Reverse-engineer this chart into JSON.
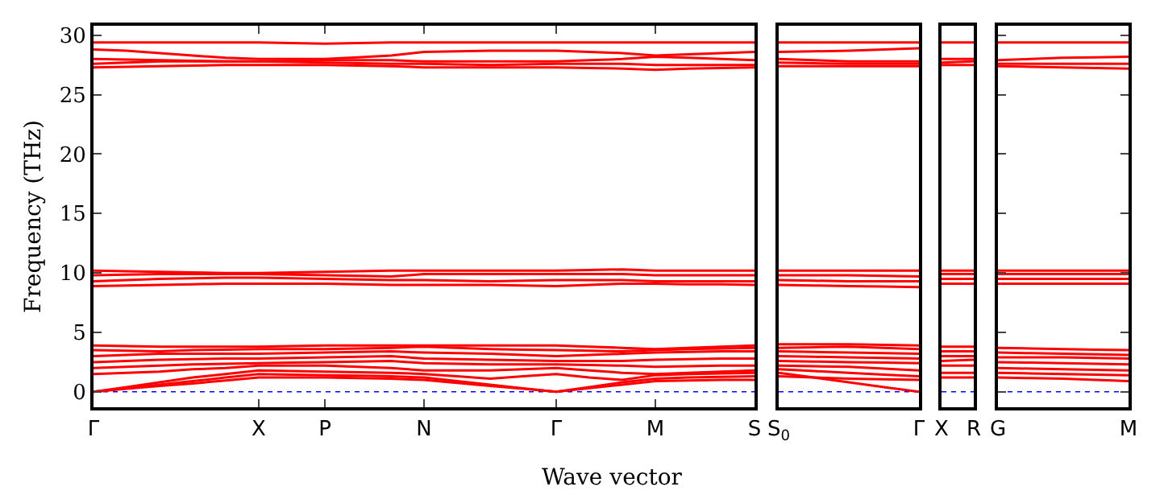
{
  "chart_data": [
    {
      "type": "line",
      "xlabel": "Wave vector",
      "ylabel": "Frequency (THz)",
      "categories": [
        "Γ",
        null,
        null,
        null,
        null,
        "X",
        null,
        "P",
        null,
        null,
        "N",
        null,
        null,
        null,
        "Γ",
        null,
        null,
        "M",
        null,
        null,
        "S"
      ],
      "ylim": [
        -1.3,
        30.8
      ],
      "yticks": [
        0,
        5,
        10,
        15,
        20,
        25,
        30
      ],
      "marker": "none",
      "line_style": "solid",
      "ref_lines": [
        {
          "axis": "y",
          "value": 0,
          "label": null,
          "color": "#0000ff",
          "line_style": "dotted"
        }
      ],
      "series": [
        {
          "color": "#ff0000",
          "values": [
            0,
            0.25,
            0.5,
            0.7,
            0.95,
            1.2,
            1.2,
            1.2,
            1.15,
            1.1,
            1.0,
            0.75,
            0.5,
            0.25,
            0,
            0.3,
            0.6,
            0.9,
            0.95,
            1.0,
            1.0
          ]
        },
        {
          "color": "#ff0000",
          "values": [
            0,
            0.3,
            0.6,
            0.9,
            1.2,
            1.5,
            1.45,
            1.4,
            1.35,
            1.3,
            1.2,
            0.9,
            0.6,
            0.3,
            0,
            0.4,
            0.8,
            1.1,
            1.2,
            1.25,
            1.3
          ]
        },
        {
          "color": "#ff0000",
          "values": [
            0,
            0.4,
            0.8,
            1.2,
            1.5,
            1.8,
            1.75,
            1.7,
            1.65,
            1.6,
            1.5,
            1.3,
            1.1,
            1.3,
            1.5,
            1.2,
            1.0,
            1.4,
            1.5,
            1.55,
            1.6
          ]
        },
        {
          "color": "#ff0000",
          "values": [
            1.5,
            1.6,
            1.7,
            1.9,
            2.0,
            2.2,
            2.2,
            2.2,
            2.1,
            2.0,
            1.8,
            1.8,
            1.8,
            1.9,
            2.0,
            1.8,
            1.6,
            1.5,
            1.6,
            1.7,
            1.8
          ]
        },
        {
          "color": "#ff0000",
          "values": [
            2.0,
            2.1,
            2.2,
            2.3,
            2.35,
            2.4,
            2.45,
            2.5,
            2.55,
            2.6,
            2.4,
            2.35,
            2.3,
            2.3,
            2.3,
            2.25,
            2.2,
            2.1,
            2.15,
            2.2,
            2.2
          ]
        },
        {
          "color": "#ff0000",
          "values": [
            2.5,
            2.6,
            2.7,
            2.75,
            2.8,
            2.8,
            2.85,
            2.9,
            2.95,
            3.0,
            2.8,
            2.75,
            2.7,
            2.65,
            2.6,
            2.6,
            2.6,
            2.7,
            2.75,
            2.8,
            2.8
          ]
        },
        {
          "color": "#ff0000",
          "values": [
            3.0,
            3.1,
            3.2,
            3.2,
            3.2,
            3.2,
            3.25,
            3.3,
            3.35,
            3.4,
            3.3,
            3.25,
            3.2,
            3.1,
            3.0,
            3.1,
            3.2,
            3.3,
            3.35,
            3.4,
            3.4
          ]
        },
        {
          "color": "#ff0000",
          "values": [
            3.5,
            3.45,
            3.4,
            3.5,
            3.55,
            3.6,
            3.6,
            3.6,
            3.65,
            3.7,
            3.8,
            3.7,
            3.6,
            3.55,
            3.5,
            3.45,
            3.4,
            3.5,
            3.6,
            3.65,
            3.7
          ]
        },
        {
          "color": "#ff0000",
          "values": [
            3.9,
            3.85,
            3.8,
            3.8,
            3.8,
            3.8,
            3.85,
            3.9,
            3.9,
            3.9,
            3.9,
            3.9,
            3.9,
            3.9,
            3.9,
            3.8,
            3.7,
            3.6,
            3.7,
            3.8,
            3.9
          ]
        },
        {
          "color": "#ff0000",
          "values": [
            8.9,
            8.95,
            9.0,
            9.05,
            9.1,
            9.1,
            9.1,
            9.1,
            9.05,
            9.0,
            9.0,
            9.0,
            9.0,
            8.95,
            8.9,
            9.0,
            9.1,
            9.1,
            9.05,
            9.05,
            9.0
          ]
        },
        {
          "color": "#ff0000",
          "values": [
            9.3,
            9.4,
            9.5,
            9.55,
            9.6,
            9.6,
            9.55,
            9.5,
            9.45,
            9.4,
            9.4,
            9.35,
            9.3,
            9.35,
            9.4,
            9.4,
            9.4,
            9.3,
            9.3,
            9.3,
            9.3
          ]
        },
        {
          "color": "#ff0000",
          "values": [
            9.8,
            9.85,
            9.9,
            9.9,
            9.9,
            9.9,
            9.85,
            9.8,
            9.75,
            9.7,
            9.9,
            9.9,
            9.9,
            9.9,
            9.9,
            9.9,
            9.9,
            9.8,
            9.8,
            9.8,
            9.8
          ]
        },
        {
          "color": "#ff0000",
          "values": [
            10.2,
            10.15,
            10.1,
            10.05,
            10.0,
            10.0,
            10.05,
            10.1,
            10.15,
            10.2,
            10.2,
            10.2,
            10.2,
            10.2,
            10.2,
            10.25,
            10.3,
            10.2,
            10.2,
            10.2,
            10.2
          ]
        },
        {
          "color": "#ff0000",
          "values": [
            27.3,
            27.35,
            27.4,
            27.45,
            27.5,
            27.5,
            27.5,
            27.5,
            27.45,
            27.4,
            27.3,
            27.3,
            27.3,
            27.3,
            27.3,
            27.25,
            27.2,
            27.1,
            27.2,
            27.25,
            27.3
          ]
        },
        {
          "color": "#ff0000",
          "values": [
            27.6,
            27.7,
            27.8,
            27.8,
            27.8,
            27.8,
            27.75,
            27.7,
            27.65,
            27.6,
            27.6,
            27.55,
            27.5,
            27.55,
            27.6,
            27.6,
            27.6,
            27.5,
            27.5,
            27.5,
            27.5
          ]
        },
        {
          "color": "#ff0000",
          "values": [
            28.0,
            27.95,
            27.9,
            27.85,
            27.8,
            27.8,
            27.85,
            27.9,
            27.9,
            27.9,
            27.8,
            27.8,
            27.8,
            27.8,
            27.8,
            27.9,
            28.0,
            28.2,
            28.1,
            28.0,
            27.9
          ]
        },
        {
          "color": "#ff0000",
          "values": [
            28.8,
            28.7,
            28.5,
            28.3,
            28.1,
            28.0,
            28.0,
            28.0,
            28.15,
            28.3,
            28.6,
            28.65,
            28.7,
            28.7,
            28.7,
            28.6,
            28.5,
            28.3,
            28.4,
            28.5,
            28.6
          ]
        },
        {
          "color": "#ff0000",
          "values": [
            29.4,
            29.4,
            29.4,
            29.4,
            29.4,
            29.4,
            29.35,
            29.3,
            29.35,
            29.4,
            29.4,
            29.4,
            29.4,
            29.4,
            29.4,
            29.4,
            29.4,
            29.4,
            29.4,
            29.4,
            29.4
          ]
        }
      ]
    },
    {
      "type": "line",
      "tick_labels": "x",
      "categories": [
        "S$_{0}$",
        null,
        null,
        null,
        "Γ"
      ],
      "ylim": [
        -1.3,
        30.8
      ],
      "yticks": [
        0,
        5,
        10,
        15,
        20,
        25,
        30
      ],
      "marker": "none",
      "line_style": "solid",
      "ref_lines": [
        {
          "axis": "y",
          "value": 0,
          "label": null,
          "color": "#0000ff",
          "line_style": "dotted"
        }
      ],
      "series": [
        {
          "color": "#ff0000",
          "values": [
            1.6,
            1.2,
            0.8,
            0.4,
            0
          ]
        },
        {
          "color": "#ff0000",
          "values": [
            1.3,
            1.2,
            1.1,
            1.05,
            1.0
          ]
        },
        {
          "color": "#ff0000",
          "values": [
            1.9,
            1.75,
            1.6,
            1.45,
            1.3
          ]
        },
        {
          "color": "#ff0000",
          "values": [
            2.2,
            2.15,
            2.1,
            1.95,
            1.8
          ]
        },
        {
          "color": "#ff0000",
          "values": [
            2.6,
            2.55,
            2.5,
            2.45,
            2.4
          ]
        },
        {
          "color": "#ff0000",
          "values": [
            3.0,
            2.95,
            2.9,
            2.85,
            2.8
          ]
        },
        {
          "color": "#ff0000",
          "values": [
            3.4,
            3.35,
            3.3,
            3.25,
            3.2
          ]
        },
        {
          "color": "#ff0000",
          "values": [
            3.7,
            3.75,
            3.8,
            3.7,
            3.6
          ]
        },
        {
          "color": "#ff0000",
          "values": [
            4.0,
            4.0,
            4.0,
            3.95,
            3.9
          ]
        },
        {
          "color": "#ff0000",
          "values": [
            9.0,
            8.95,
            8.9,
            8.85,
            8.8
          ]
        },
        {
          "color": "#ff0000",
          "values": [
            9.4,
            9.35,
            9.3,
            9.3,
            9.3
          ]
        },
        {
          "color": "#ff0000",
          "values": [
            9.8,
            9.8,
            9.8,
            9.75,
            9.7
          ]
        },
        {
          "color": "#ff0000",
          "values": [
            10.2,
            10.2,
            10.2,
            10.2,
            10.2
          ]
        },
        {
          "color": "#ff0000",
          "values": [
            27.4,
            27.4,
            27.4,
            27.4,
            27.4
          ]
        },
        {
          "color": "#ff0000",
          "values": [
            27.7,
            27.65,
            27.6,
            27.6,
            27.6
          ]
        },
        {
          "color": "#ff0000",
          "values": [
            28.0,
            27.9,
            27.8,
            27.8,
            27.8
          ]
        },
        {
          "color": "#ff0000",
          "values": [
            28.6,
            28.65,
            28.7,
            28.8,
            28.9
          ]
        },
        {
          "color": "#ff0000",
          "values": [
            29.4,
            29.4,
            29.4,
            29.4,
            29.4
          ]
        }
      ]
    },
    {
      "type": "line",
      "tick_labels": "x",
      "categories": [
        "X",
        "R"
      ],
      "ylim": [
        -1.3,
        30.8
      ],
      "yticks": [
        0,
        5,
        10,
        15,
        20,
        25,
        30
      ],
      "marker": "none",
      "line_style": "solid",
      "ref_lines": [
        {
          "axis": "y",
          "value": 0,
          "label": null,
          "color": "#0000ff",
          "line_style": "dotted"
        }
      ],
      "series": [
        {
          "color": "#ff0000",
          "values": [
            1.2,
            1.2
          ]
        },
        {
          "color": "#ff0000",
          "values": [
            1.6,
            1.6
          ]
        },
        {
          "color": "#ff0000",
          "values": [
            2.2,
            2.2
          ]
        },
        {
          "color": "#ff0000",
          "values": [
            2.6,
            2.7
          ]
        },
        {
          "color": "#ff0000",
          "values": [
            3.0,
            3.0
          ]
        },
        {
          "color": "#ff0000",
          "values": [
            3.4,
            3.4
          ]
        },
        {
          "color": "#ff0000",
          "values": [
            3.8,
            3.8
          ]
        },
        {
          "color": "#ff0000",
          "values": [
            9.1,
            9.1
          ]
        },
        {
          "color": "#ff0000",
          "values": [
            9.5,
            9.5
          ]
        },
        {
          "color": "#ff0000",
          "values": [
            9.9,
            9.9
          ]
        },
        {
          "color": "#ff0000",
          "values": [
            10.2,
            10.2
          ]
        },
        {
          "color": "#ff0000",
          "values": [
            27.5,
            27.5
          ]
        },
        {
          "color": "#ff0000",
          "values": [
            27.7,
            27.8
          ]
        },
        {
          "color": "#ff0000",
          "values": [
            28.0,
            28.0
          ]
        },
        {
          "color": "#ff0000",
          "values": [
            29.4,
            29.4
          ]
        }
      ]
    },
    {
      "type": "line",
      "tick_labels": "x",
      "categories": [
        "G",
        null,
        null,
        null,
        "M"
      ],
      "ylim": [
        -1.3,
        30.8
      ],
      "yticks": [
        0,
        5,
        10,
        15,
        20,
        25,
        30
      ],
      "marker": "none",
      "line_style": "solid",
      "ref_lines": [
        {
          "axis": "y",
          "value": 0,
          "label": null,
          "color": "#0000ff",
          "line_style": "dotted"
        }
      ],
      "series": [
        {
          "color": "#ff0000",
          "values": [
            1.2,
            1.15,
            1.1,
            1.0,
            0.9
          ]
        },
        {
          "color": "#ff0000",
          "values": [
            1.6,
            1.55,
            1.5,
            1.45,
            1.4
          ]
        },
        {
          "color": "#ff0000",
          "values": [
            2.0,
            1.95,
            1.9,
            1.85,
            1.8
          ]
        },
        {
          "color": "#ff0000",
          "values": [
            2.5,
            2.45,
            2.4,
            2.35,
            2.3
          ]
        },
        {
          "color": "#ff0000",
          "values": [
            2.9,
            2.9,
            2.9,
            2.85,
            2.8
          ]
        },
        {
          "color": "#ff0000",
          "values": [
            3.3,
            3.25,
            3.2,
            3.15,
            3.1
          ]
        },
        {
          "color": "#ff0000",
          "values": [
            3.7,
            3.65,
            3.6,
            3.55,
            3.5
          ]
        },
        {
          "color": "#ff0000",
          "values": [
            9.1,
            9.1,
            9.1,
            9.1,
            9.1
          ]
        },
        {
          "color": "#ff0000",
          "values": [
            9.5,
            9.5,
            9.5,
            9.5,
            9.5
          ]
        },
        {
          "color": "#ff0000",
          "values": [
            9.9,
            9.9,
            9.9,
            9.9,
            9.9
          ]
        },
        {
          "color": "#ff0000",
          "values": [
            10.2,
            10.2,
            10.2,
            10.2,
            10.2
          ]
        },
        {
          "color": "#ff0000",
          "values": [
            27.4,
            27.35,
            27.3,
            27.25,
            27.2
          ]
        },
        {
          "color": "#ff0000",
          "values": [
            27.6,
            27.6,
            27.6,
            27.6,
            27.6
          ]
        },
        {
          "color": "#ff0000",
          "values": [
            27.9,
            28.0,
            28.1,
            28.15,
            28.2
          ]
        },
        {
          "color": "#ff0000",
          "values": [
            29.4,
            29.4,
            29.4,
            29.4,
            29.4
          ]
        }
      ]
    }
  ]
}
